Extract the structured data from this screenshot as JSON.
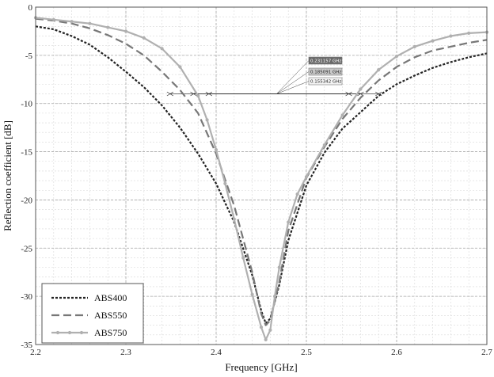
{
  "chart_data": {
    "type": "line",
    "title": "",
    "xlabel": "Frequency [GHz]",
    "ylabel": "Reflection coefficient [dB]",
    "xlim": [
      2.2,
      2.7
    ],
    "ylim": [
      -35,
      0
    ],
    "x_ticks": [
      "2.2",
      "2.3",
      "2.4",
      "2.5",
      "2.6",
      "2.7"
    ],
    "y_ticks": [
      "0",
      "-5",
      "-10",
      "-15",
      "-20",
      "-25",
      "-30",
      "-35"
    ],
    "x_tick_values": [
      2.2,
      2.3,
      2.4,
      2.5,
      2.6,
      2.7
    ],
    "y_tick_values": [
      0,
      -5,
      -10,
      -15,
      -20,
      -25,
      -30,
      -35
    ],
    "grid": true,
    "minor_grid": true,
    "legend_position": "bottom-left",
    "series": [
      {
        "name": "ABS400",
        "style": "dotted",
        "color": "#222222",
        "x": [
          2.2,
          2.22,
          2.24,
          2.26,
          2.28,
          2.3,
          2.32,
          2.34,
          2.36,
          2.38,
          2.4,
          2.42,
          2.44,
          2.45,
          2.455,
          2.46,
          2.47,
          2.48,
          2.5,
          2.52,
          2.54,
          2.56,
          2.58,
          2.6,
          2.62,
          2.64,
          2.66,
          2.68,
          2.7
        ],
        "y": [
          -2.0,
          -2.3,
          -3.0,
          -3.9,
          -5.2,
          -6.7,
          -8.3,
          -10.2,
          -12.5,
          -15.2,
          -18.3,
          -22.3,
          -27.8,
          -31.5,
          -32.8,
          -32.3,
          -28.8,
          -24.2,
          -18.5,
          -15.1,
          -12.6,
          -10.9,
          -9.2,
          -8.0,
          -7.1,
          -6.3,
          -5.7,
          -5.2,
          -4.8
        ]
      },
      {
        "name": "ABS550",
        "style": "dashed",
        "color": "#777777",
        "x": [
          2.2,
          2.22,
          2.24,
          2.26,
          2.28,
          2.3,
          2.32,
          2.34,
          2.36,
          2.38,
          2.4,
          2.42,
          2.44,
          2.45,
          2.455,
          2.46,
          2.47,
          2.48,
          2.5,
          2.52,
          2.54,
          2.56,
          2.58,
          2.6,
          2.62,
          2.64,
          2.66,
          2.68,
          2.7
        ],
        "y": [
          -1.2,
          -1.4,
          -1.7,
          -2.2,
          -2.9,
          -3.8,
          -5.0,
          -6.7,
          -8.6,
          -11.0,
          -15.2,
          -20.6,
          -27.5,
          -31.8,
          -33.0,
          -32.5,
          -28.5,
          -23.2,
          -17.7,
          -14.5,
          -11.6,
          -9.4,
          -7.6,
          -6.2,
          -5.2,
          -4.5,
          -4.1,
          -3.7,
          -3.4
        ]
      },
      {
        "name": "ABS750",
        "style": "solid-with-dots",
        "color": "#b0b0b0",
        "x": [
          2.2,
          2.22,
          2.24,
          2.26,
          2.28,
          2.3,
          2.32,
          2.34,
          2.36,
          2.38,
          2.39,
          2.4,
          2.41,
          2.42,
          2.43,
          2.44,
          2.45,
          2.455,
          2.46,
          2.465,
          2.47,
          2.48,
          2.49,
          2.5,
          2.52,
          2.54,
          2.56,
          2.58,
          2.6,
          2.62,
          2.64,
          2.66,
          2.68,
          2.7
        ],
        "y": [
          -1.1,
          -1.3,
          -1.5,
          -1.7,
          -2.1,
          -2.5,
          -3.2,
          -4.3,
          -6.2,
          -9.2,
          -11.7,
          -14.8,
          -18.3,
          -22.0,
          -26.0,
          -29.8,
          -33.2,
          -34.5,
          -33.5,
          -30.0,
          -27.0,
          -22.3,
          -19.4,
          -17.6,
          -14.3,
          -11.2,
          -8.5,
          -6.5,
          -5.1,
          -4.1,
          -3.5,
          -3.0,
          -2.7,
          -2.6
        ]
      }
    ],
    "annotations": [
      {
        "text": "0.231157 GHz",
        "level": -9.0,
        "x_start": 2.349,
        "x_end": 2.58
      },
      {
        "text": "0.185091 GHz",
        "level": -9.0,
        "x_start": 2.375,
        "x_end": 2.56
      },
      {
        "text": "0.155342 GHz",
        "level": -9.0,
        "x_start": 2.392,
        "x_end": 2.547
      }
    ]
  }
}
